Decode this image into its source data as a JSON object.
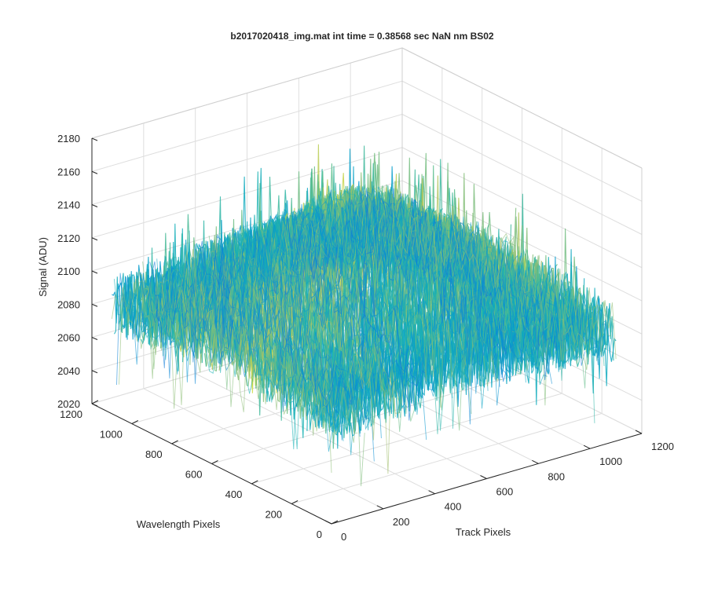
{
  "chart_data": {
    "type": "surface",
    "title": "b2017020418_img.mat int time = 0.38568 sec  NaN nm BS02",
    "xlabel": "Track Pixels",
    "ylabel": "Wavelength Pixels",
    "zlabel": "Signal (ADU)",
    "xlim": [
      0,
      1200
    ],
    "ylim": [
      0,
      1200
    ],
    "zlim": [
      2020,
      2180
    ],
    "x_ticks": [
      "0",
      "200",
      "400",
      "600",
      "800",
      "1000",
      "1200"
    ],
    "y_ticks": [
      "0",
      "200",
      "400",
      "600",
      "800",
      "1000",
      "1200"
    ],
    "z_ticks": [
      "2020",
      "2040",
      "2060",
      "2080",
      "2100",
      "2120",
      "2140",
      "2160",
      "2180"
    ],
    "grid": true,
    "colormap": "parula",
    "surface": {
      "x_range": [
        0,
        1100
      ],
      "y_range": [
        0,
        1100
      ],
      "signal_mean": 2085,
      "signal_center_peak": 2170,
      "signal_min": 2025,
      "signal_max": 2180
    }
  }
}
